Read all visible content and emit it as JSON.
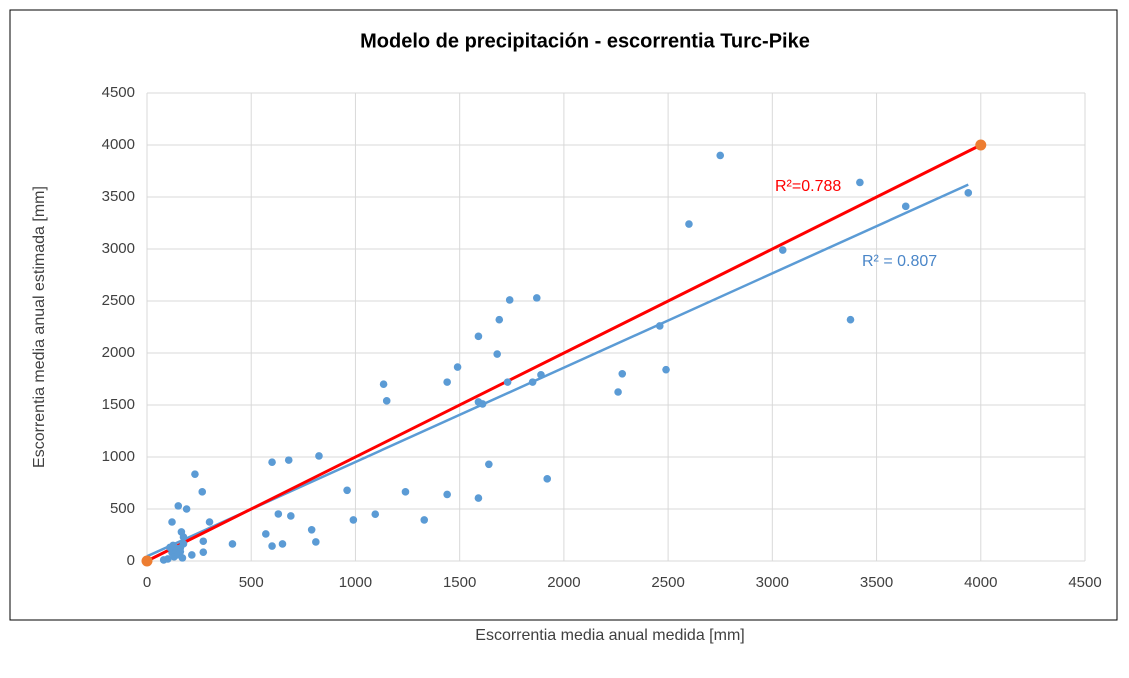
{
  "chart_data": {
    "type": "scatter",
    "title": "Modelo de precipitación - escorrentia Turc-Pike",
    "x_label": "Escorrentia media anual medida [mm]",
    "y_label": "Escorrentia media anual estimada [mm]",
    "xlim": [
      0,
      4500
    ],
    "xticks": [
      0,
      500,
      1000,
      1500,
      2000,
      2500,
      3000,
      3500,
      4000,
      4500
    ],
    "ylim": [
      0,
      4500
    ],
    "yticks": [
      0,
      500,
      1000,
      1500,
      2000,
      2500,
      3000,
      3500,
      4000,
      4500
    ],
    "grid": true,
    "series": [
      {
        "color": "#5b9bd5",
        "x": [
          2750,
          2600,
          3420,
          3640,
          3940,
          3050,
          3375,
          2460,
          2490,
          2260,
          2280,
          1890,
          1850,
          1870,
          1740,
          1690,
          1680,
          1590,
          1490,
          1440,
          1730,
          1590,
          1610,
          1135,
          1150,
          1640,
          1920,
          1440,
          1590,
          1240,
          1330,
          1095,
          990,
          960,
          825,
          680,
          600,
          690,
          630,
          790,
          810,
          570,
          600,
          650,
          410,
          230,
          265,
          190,
          150,
          300,
          120,
          165,
          175,
          175,
          270,
          270,
          215,
          160,
          100,
          120,
          130,
          140,
          150,
          110,
          160,
          170,
          80,
          125
        ],
        "values": [
          3900,
          3240,
          3640,
          3410,
          3540,
          2990,
          2320,
          2260,
          1840,
          1625,
          1800,
          1790,
          1720,
          2530,
          2510,
          2320,
          1990,
          2160,
          1865,
          1720,
          1720,
          1530,
          1510,
          1700,
          1540,
          930,
          790,
          640,
          605,
          665,
          395,
          450,
          395,
          680,
          1010,
          970,
          950,
          433,
          452,
          300,
          183,
          260,
          144,
          164,
          164,
          835,
          665,
          500,
          530,
          375,
          375,
          280,
          230,
          165,
          190,
          85,
          58,
          125,
          20,
          80,
          40,
          120,
          60,
          130,
          90,
          30,
          10,
          150
        ]
      },
      {
        "color": "#ed7d31",
        "line_color": "#ff0000",
        "x": [
          0,
          4000
        ],
        "values": [
          0,
          4000
        ]
      }
    ],
    "trendline": {
      "color": "#5b9bd5",
      "slope": 0.907,
      "intercept": 45,
      "x_range": [
        0,
        3940
      ]
    },
    "annotations": [
      {
        "text": "R²=0.788",
        "color": "#ff0000"
      },
      {
        "text": "R² = 0.807",
        "color": "#4a86c8"
      }
    ]
  }
}
